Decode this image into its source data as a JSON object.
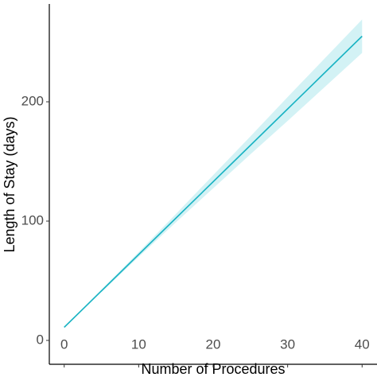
{
  "chart_data": {
    "type": "line",
    "x_label": "Number of Procedures",
    "y_label": "Length of Stay (days)",
    "x": [
      0,
      5,
      10,
      15,
      20,
      25,
      30,
      35,
      40
    ],
    "series": [
      {
        "color": "#1ab3c3",
        "values": [
          11,
          41.5,
          72,
          102.5,
          133,
          163.5,
          194,
          224.5,
          255
        ]
      }
    ],
    "band": {
      "color": "#c8eff2",
      "lower": [
        10.5,
        40.5,
        70,
        99,
        127.5,
        156,
        184,
        212.5,
        241
      ],
      "upper": [
        11.5,
        42.5,
        74,
        106,
        138.5,
        171,
        204,
        236.5,
        269
      ]
    },
    "xlim": [
      -2,
      42
    ],
    "xticks": [
      0,
      10,
      20,
      30,
      40
    ],
    "ylim": [
      -20,
      282
    ],
    "yticks": [
      0,
      100,
      200
    ],
    "grid": false
  }
}
